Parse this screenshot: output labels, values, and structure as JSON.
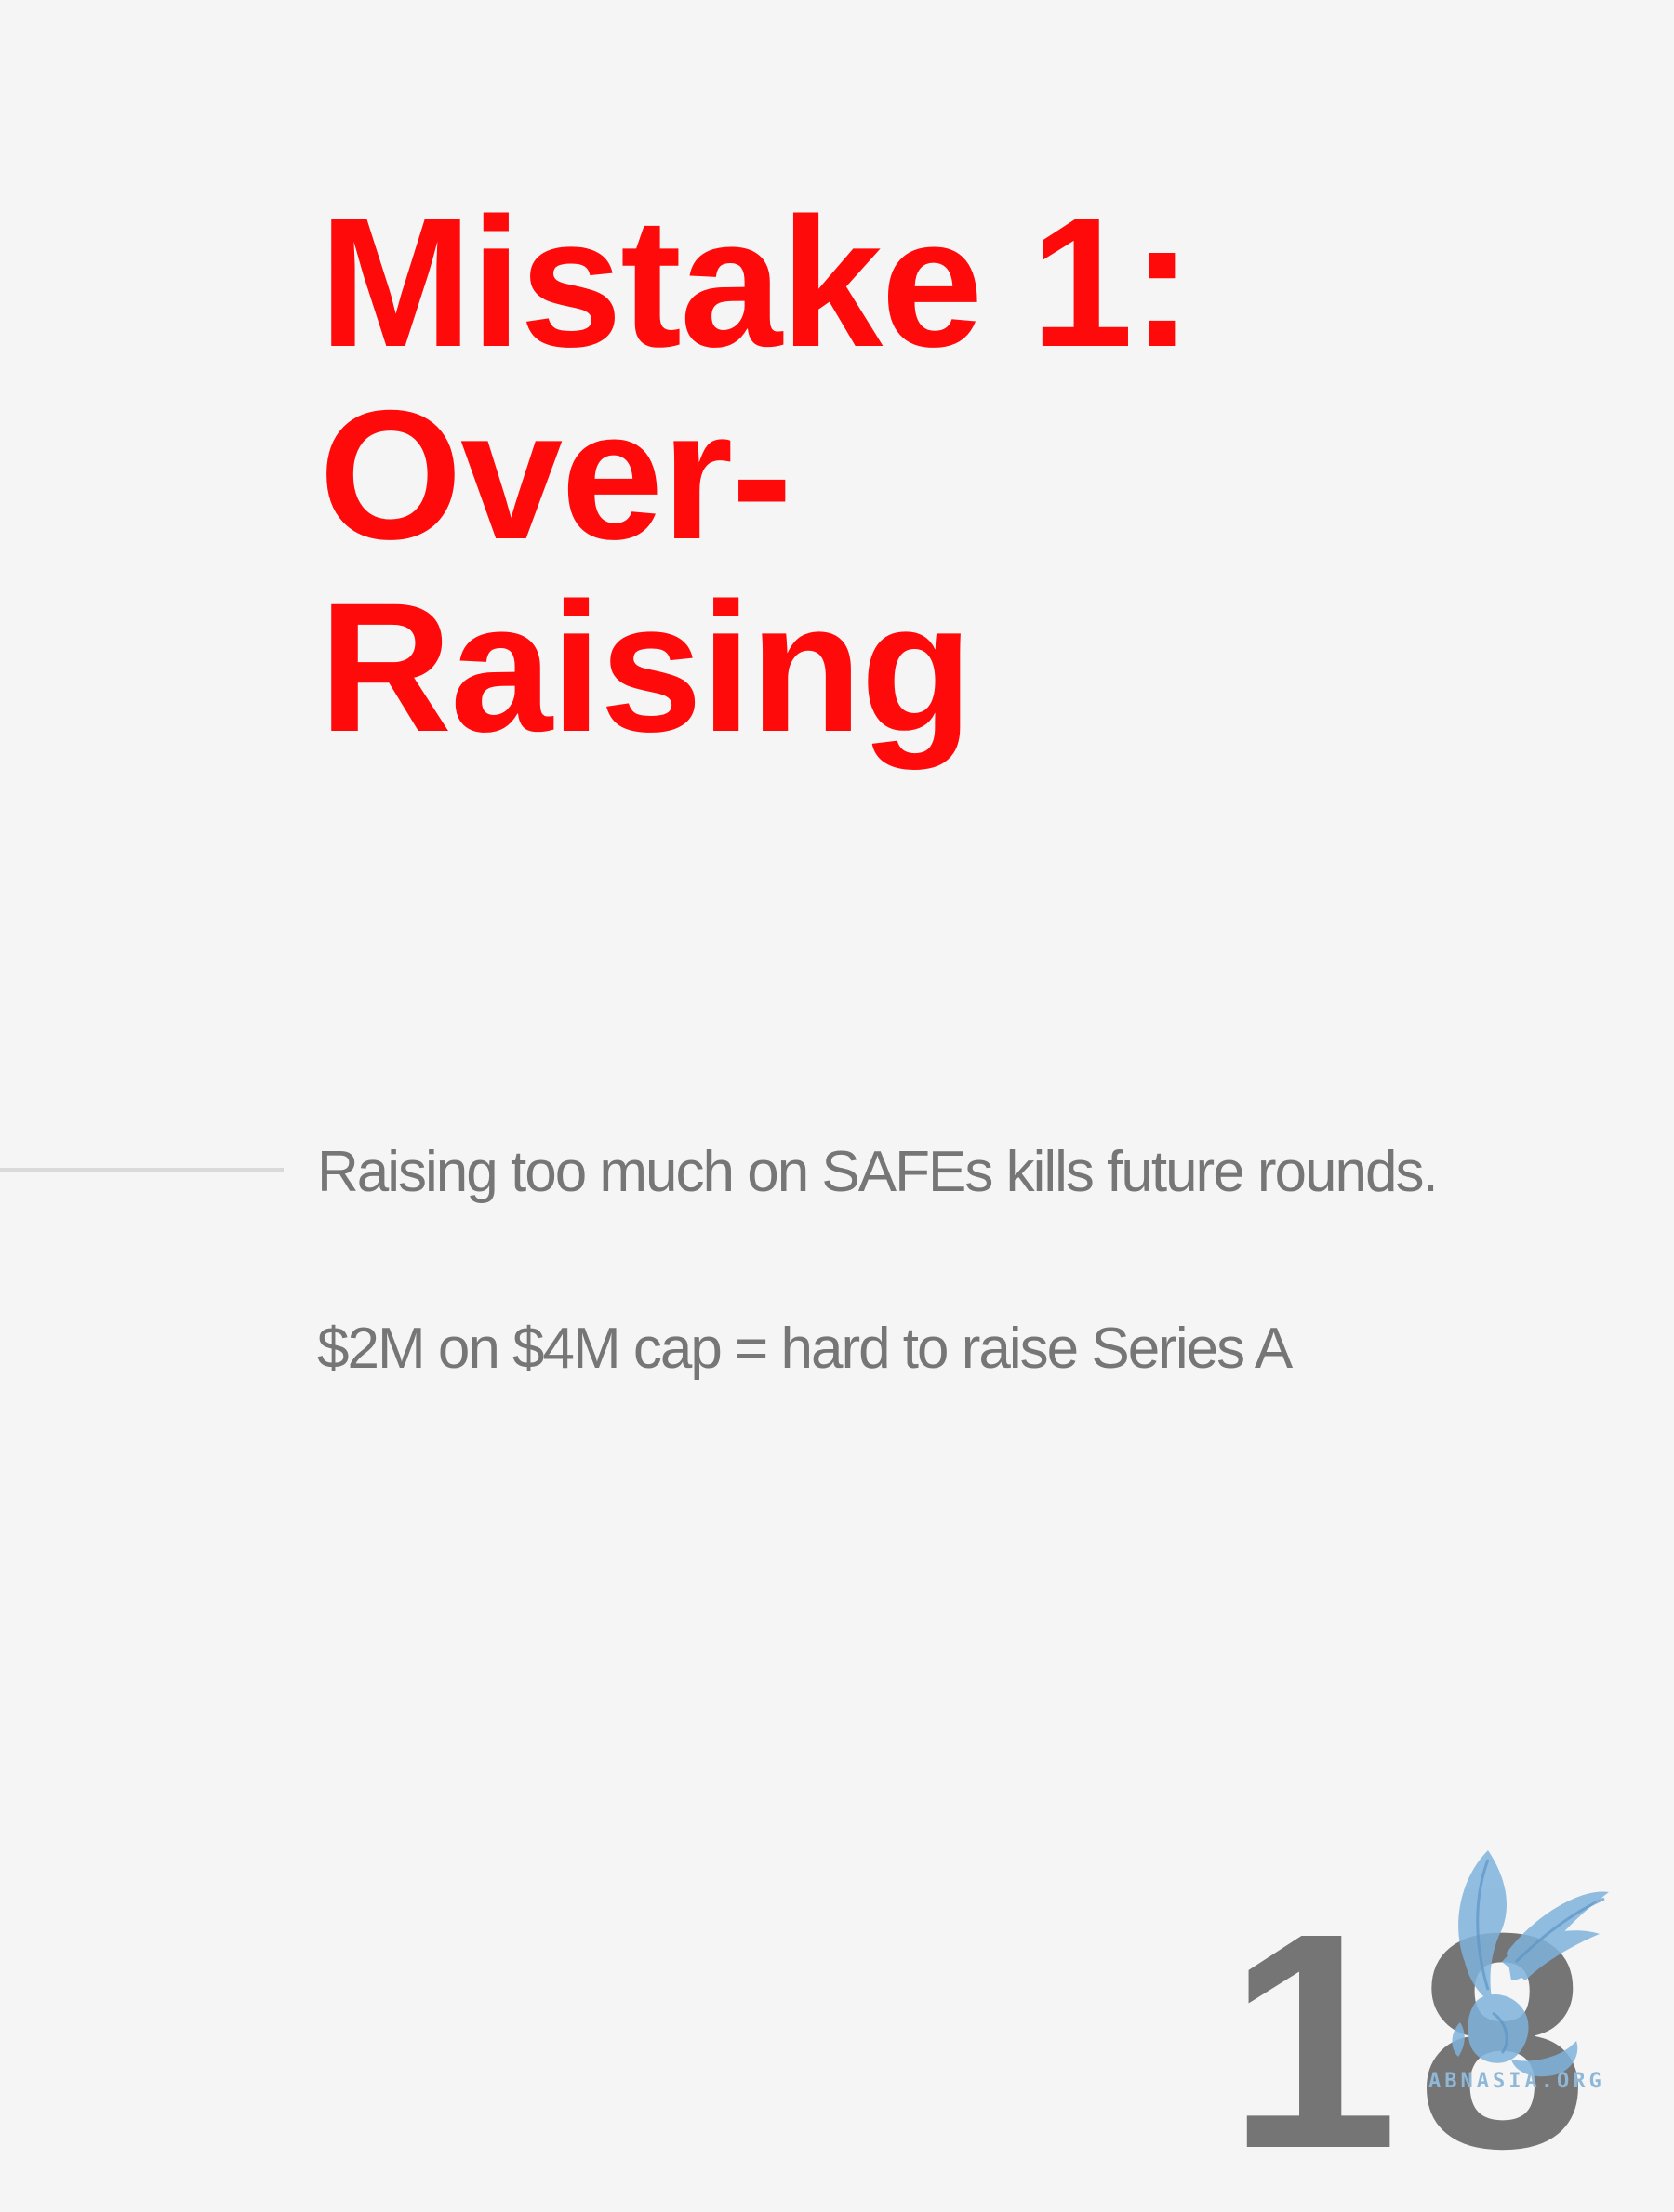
{
  "slide": {
    "title_lines": [
      "Mistake 1:",
      "Over-",
      "Raising"
    ],
    "body": {
      "line1": "Raising too much on SAFEs kills future rounds.",
      "line2": "$2M on $4M cap = hard to raise Series A"
    },
    "page_number": "18"
  },
  "watermark": {
    "text": "ABNASIA.ORG",
    "icon": "griffin-logo-icon"
  },
  "colors": {
    "background": "#f5f5f5",
    "title": "#ff0a0a",
    "body_text": "#767676",
    "page_number": "#757575",
    "watermark": "#8fb8d8"
  }
}
